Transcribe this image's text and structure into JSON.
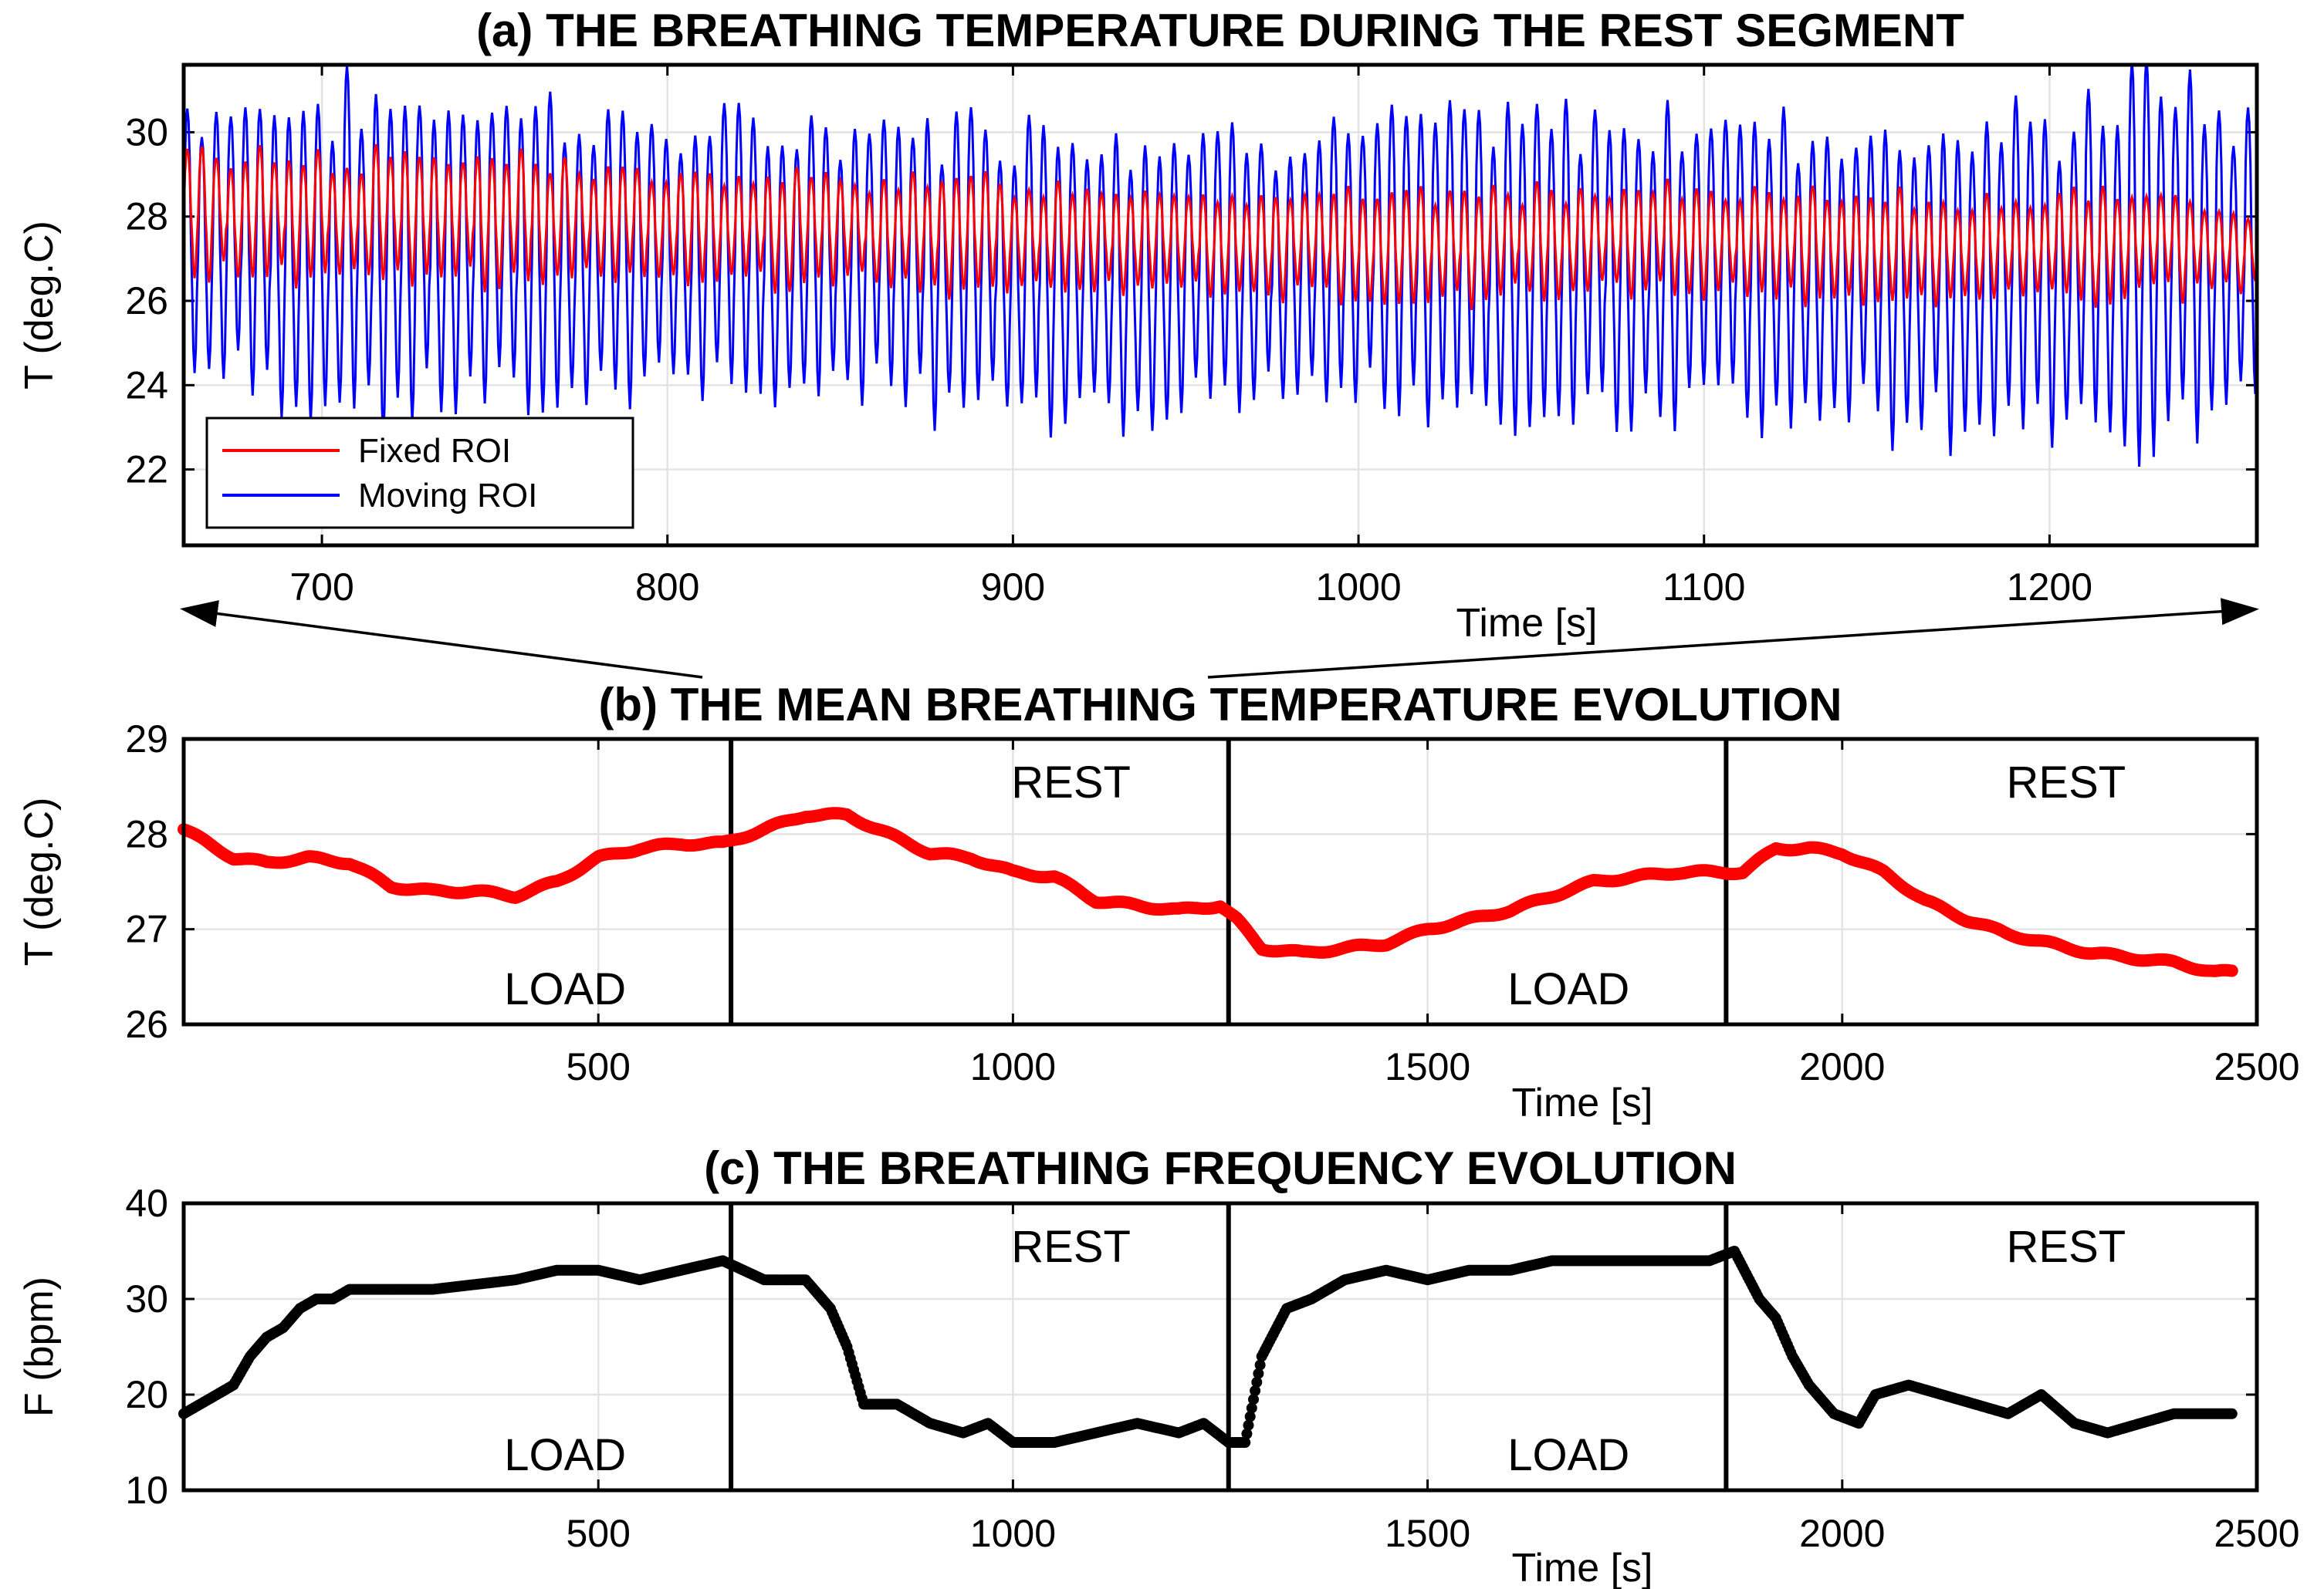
{
  "chart_data": [
    {
      "id": "a",
      "type": "line",
      "title": "(a) THE BREATHING TEMPERATURE DURING THE REST SEGMENT",
      "xlabel": "Time [s]",
      "ylabel": "T (deg.C)",
      "xlim": [
        660,
        1260
      ],
      "ylim": [
        20.2,
        31.6
      ],
      "xticks": [
        700,
        800,
        900,
        1000,
        1100,
        1200
      ],
      "yticks": [
        22,
        24,
        26,
        28,
        30
      ],
      "grid": true,
      "legend": {
        "placement": "bottom-left",
        "entries": [
          "Fixed ROI",
          "Moving ROI"
        ]
      },
      "colors": {
        "Fixed ROI": "#ff0000",
        "Moving ROI": "#0000ff"
      },
      "series": [
        {
          "name": "Moving ROI",
          "style": "oscillation",
          "period_s": 4.2,
          "envelope": {
            "x": [
              660,
              700,
              760,
              800,
              850,
              900,
              950,
              1000,
              1050,
              1100,
              1150,
              1200,
              1230,
              1260
            ],
            "high": [
              30.6,
              30.7,
              30.7,
              30.0,
              30.1,
              30.2,
              29.9,
              30.1,
              30.2,
              30.3,
              30.0,
              30.1,
              31.3,
              30.0
            ],
            "low": [
              24.2,
              23.5,
              23.4,
              24.2,
              23.6,
              23.4,
              23.3,
              23.6,
              23.2,
              23.4,
              23.2,
              22.9,
              22.4,
              23.9
            ]
          }
        },
        {
          "name": "Fixed ROI",
          "style": "oscillation",
          "period_s": 4.2,
          "envelope": {
            "x": [
              660,
              700,
              760,
              800,
              850,
              900,
              950,
              1000,
              1050,
              1100,
              1150,
              1200,
              1230,
              1260
            ],
            "high": [
              29.5,
              29.4,
              29.4,
              28.9,
              28.9,
              28.8,
              28.6,
              28.5,
              28.6,
              28.6,
              28.4,
              28.4,
              28.6,
              28.0
            ],
            "low": [
              26.6,
              26.5,
              26.6,
              26.5,
              26.4,
              26.3,
              26.2,
              26.1,
              26.1,
              26.2,
              26.1,
              26.0,
              26.1,
              26.3
            ]
          }
        }
      ]
    },
    {
      "id": "b",
      "type": "scatter",
      "title": "(b) THE MEAN BREATHING TEMPERATURE EVOLUTION",
      "xlabel": "Time [s]",
      "ylabel": "T (deg.C)",
      "xlim": [
        0,
        2500
      ],
      "ylim": [
        26,
        29
      ],
      "xticks": [
        500,
        1000,
        1500,
        2000,
        2500
      ],
      "yticks": [
        26,
        27,
        28,
        29
      ],
      "grid": true,
      "color": "#ff0000",
      "segment_boundaries": [
        660,
        1260,
        1860
      ],
      "segment_labels": [
        {
          "text": "LOAD",
          "x": 460,
          "position": "bottom"
        },
        {
          "text": "REST",
          "x": 1070,
          "position": "top"
        },
        {
          "text": "LOAD",
          "x": 1670,
          "position": "bottom"
        },
        {
          "text": "REST",
          "x": 2270,
          "position": "top"
        }
      ],
      "x": [
        0,
        30,
        60,
        100,
        150,
        200,
        250,
        300,
        350,
        400,
        450,
        500,
        550,
        600,
        650,
        700,
        750,
        800,
        850,
        900,
        950,
        1000,
        1050,
        1100,
        1150,
        1200,
        1250,
        1270,
        1300,
        1350,
        1400,
        1450,
        1500,
        1550,
        1600,
        1650,
        1700,
        1750,
        1800,
        1850,
        1880,
        1920,
        1960,
        2000,
        2050,
        2100,
        2150,
        2200,
        2250,
        2300,
        2350,
        2400,
        2450,
        2470
      ],
      "y": [
        28.05,
        27.9,
        27.75,
        27.7,
        27.75,
        27.7,
        27.45,
        27.4,
        27.4,
        27.35,
        27.5,
        27.75,
        27.85,
        27.9,
        27.9,
        28.05,
        28.2,
        28.2,
        28.0,
        27.8,
        27.75,
        27.6,
        27.55,
        27.3,
        27.25,
        27.2,
        27.25,
        27.1,
        26.8,
        26.75,
        26.8,
        26.85,
        27.0,
        27.1,
        27.2,
        27.35,
        27.5,
        27.55,
        27.6,
        27.6,
        27.6,
        27.85,
        27.85,
        27.8,
        27.6,
        27.3,
        27.1,
        26.95,
        26.85,
        26.75,
        26.7,
        26.65,
        26.55,
        26.55
      ]
    },
    {
      "id": "c",
      "type": "scatter",
      "title": "(c) THE BREATHING FREQUENCY EVOLUTION",
      "xlabel": "Time [s]",
      "ylabel": "F (bpm)",
      "xlim": [
        0,
        2500
      ],
      "ylim": [
        10,
        40
      ],
      "xticks": [
        500,
        1000,
        1500,
        2000,
        2500
      ],
      "yticks": [
        10,
        20,
        30,
        40
      ],
      "grid": true,
      "color": "#000000",
      "segment_boundaries": [
        660,
        1260,
        1860
      ],
      "segment_labels": [
        {
          "text": "LOAD",
          "x": 460,
          "position": "bottom"
        },
        {
          "text": "REST",
          "x": 1070,
          "position": "top"
        },
        {
          "text": "LOAD",
          "x": 1670,
          "position": "bottom"
        },
        {
          "text": "REST",
          "x": 2270,
          "position": "top"
        }
      ],
      "x": [
        0,
        20,
        40,
        60,
        80,
        100,
        120,
        140,
        160,
        180,
        200,
        300,
        400,
        450,
        500,
        550,
        600,
        650,
        700,
        750,
        780,
        800,
        820,
        860,
        900,
        940,
        970,
        1000,
        1050,
        1100,
        1150,
        1200,
        1230,
        1260,
        1280,
        1300,
        1330,
        1360,
        1400,
        1450,
        1500,
        1550,
        1600,
        1650,
        1700,
        1750,
        1800,
        1840,
        1870,
        1900,
        1920,
        1940,
        1960,
        1990,
        2020,
        2040,
        2080,
        2120,
        2160,
        2200,
        2240,
        2280,
        2320,
        2360,
        2400,
        2440,
        2470
      ],
      "y": [
        18,
        19,
        20,
        21,
        24,
        26,
        27,
        29,
        30,
        30,
        31,
        31,
        32,
        33,
        33,
        32,
        33,
        34,
        32,
        32,
        29,
        25,
        19,
        19,
        17,
        16,
        17,
        15,
        15,
        16,
        17,
        16,
        17,
        15,
        15,
        24,
        29,
        30,
        32,
        33,
        32,
        33,
        33,
        34,
        34,
        34,
        34,
        34,
        35,
        30,
        28,
        24,
        21,
        18,
        17,
        20,
        21,
        20,
        19,
        18,
        20,
        17,
        16,
        17,
        18,
        18,
        18
      ]
    }
  ]
}
